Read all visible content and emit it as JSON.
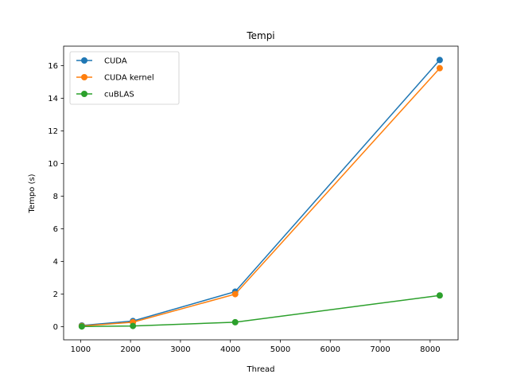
{
  "chart_data": {
    "type": "line",
    "title": "Tempi",
    "xlabel": "Thread",
    "ylabel": "Tempo (s)",
    "x": [
      1024,
      2048,
      4096,
      8192
    ],
    "xlim": [
      660,
      8560
    ],
    "ylim": [
      -0.8,
      17.2
    ],
    "xticks": [
      1000,
      2000,
      3000,
      4000,
      5000,
      6000,
      7000,
      8000
    ],
    "yticks": [
      0,
      2,
      4,
      6,
      8,
      10,
      12,
      14,
      16
    ],
    "grid": false,
    "legend_position": "upper-left",
    "series": [
      {
        "name": "CUDA",
        "color": "#1f77b4",
        "values": [
          0.08,
          0.35,
          2.15,
          16.35
        ]
      },
      {
        "name": "CUDA kernel",
        "color": "#ff7f0e",
        "values": [
          0.05,
          0.28,
          2.0,
          15.85
        ]
      },
      {
        "name": "cuBLAS",
        "color": "#2ca02c",
        "values": [
          0.02,
          0.05,
          0.28,
          1.92
        ]
      }
    ]
  }
}
